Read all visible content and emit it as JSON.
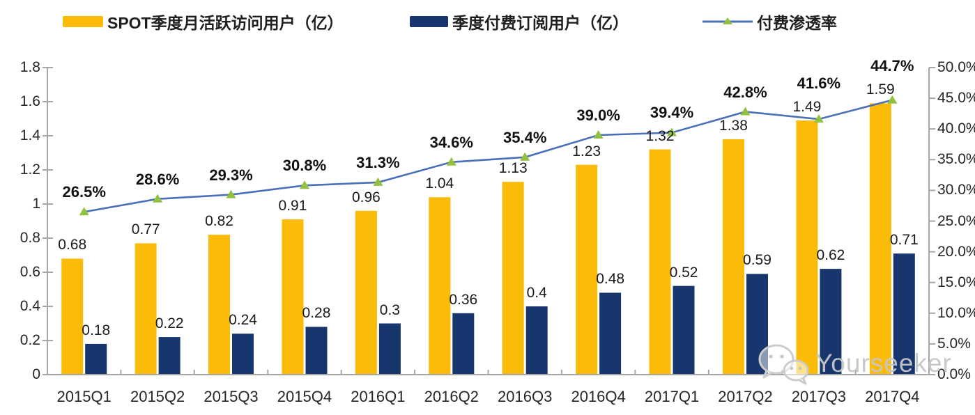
{
  "legend": {
    "items": [
      {
        "label": "SPOT季度月活跃访问用户（亿）",
        "color": "#FBBC09"
      },
      {
        "label": "季度付费订阅用户（亿）",
        "color": "#17366D"
      },
      {
        "label": "付费渗透率",
        "line_color": "#4A70B8",
        "marker_color": "#92C13D"
      }
    ]
  },
  "watermark": {
    "text": "Yourseeker",
    "icon": "wechat-icon",
    "color": "#C7C7C7"
  },
  "chart_data": {
    "type": "bar",
    "subtype": "grouped bars with line on secondary axis",
    "title": "",
    "xlabel": "",
    "ylabel": "",
    "grid": false,
    "legend_position": "top",
    "categories": [
      "2015Q1",
      "2015Q2",
      "2015Q3",
      "2015Q4",
      "2016Q1",
      "2016Q2",
      "2016Q3",
      "2016Q4",
      "2017Q1",
      "2017Q2",
      "2017Q3",
      "2017Q4"
    ],
    "series": [
      {
        "name": "SPOT季度月活跃访问用户（亿）",
        "type": "bar",
        "axis": "left",
        "color": "#FBBC09",
        "values": [
          0.68,
          0.77,
          0.82,
          0.91,
          0.96,
          1.04,
          1.13,
          1.23,
          1.32,
          1.38,
          1.49,
          1.59
        ],
        "labels": [
          "0.68",
          "0.77",
          "0.82",
          "0.91",
          "0.96",
          "1.04",
          "1.13",
          "1.23",
          "1.32",
          "1.38",
          "1.49",
          "1.59"
        ]
      },
      {
        "name": "季度付费订阅用户（亿）",
        "type": "bar",
        "axis": "left",
        "color": "#17366D",
        "values": [
          0.18,
          0.22,
          0.24,
          0.28,
          0.3,
          0.36,
          0.4,
          0.48,
          0.52,
          0.59,
          0.62,
          0.71
        ],
        "labels": [
          "0.18",
          "0.22",
          "0.24",
          "0.28",
          "0.3",
          "0.36",
          "0.4",
          "0.48",
          "0.52",
          "0.59",
          "0.62",
          "0.71"
        ]
      },
      {
        "name": "付费渗透率",
        "type": "line",
        "axis": "right",
        "color": "#4A70B8",
        "marker": "triangle-up",
        "marker_color": "#92C13D",
        "values": [
          26.5,
          28.6,
          29.3,
          30.8,
          31.3,
          34.6,
          35.4,
          39.0,
          39.4,
          42.8,
          41.6,
          44.7
        ],
        "labels": [
          "26.5%",
          "28.6%",
          "29.3%",
          "30.8%",
          "31.3%",
          "34.6%",
          "35.4%",
          "39.0%",
          "39.4%",
          "42.8%",
          "41.6%",
          "44.7%"
        ]
      }
    ],
    "left_axis": {
      "min": 0,
      "max": 1.8,
      "step": 0.2,
      "ticks": [
        "0",
        "0.2",
        "0.4",
        "0.6",
        "0.8",
        "1",
        "1.2",
        "1.4",
        "1.6",
        "1.8"
      ]
    },
    "right_axis": {
      "min": 0,
      "max": 50,
      "step": 5,
      "ticks": [
        "0.0%",
        "5.0%",
        "10.0%",
        "15.0%",
        "20.0%",
        "25.0%",
        "30.0%",
        "35.0%",
        "40.0%",
        "45.0%",
        "50.0%"
      ]
    }
  }
}
